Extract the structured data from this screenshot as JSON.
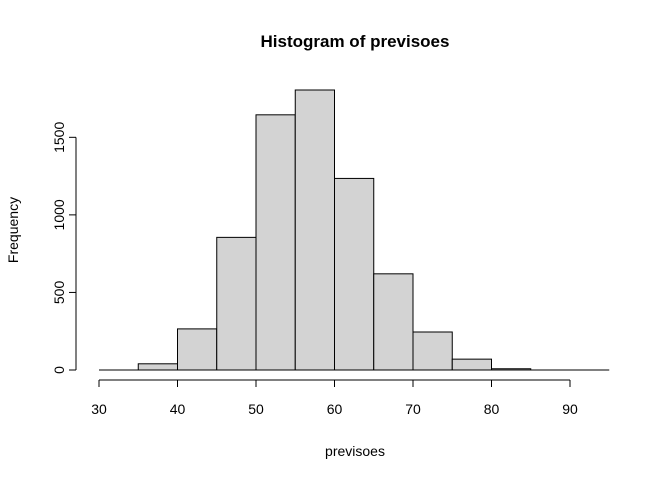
{
  "chart_data": {
    "type": "bar",
    "title": "Histogram of previsoes",
    "xlabel": "previsoes",
    "ylabel": "Frequency",
    "bins": [
      {
        "from": 30,
        "to": 35,
        "count": 0
      },
      {
        "from": 35,
        "to": 40,
        "count": 40
      },
      {
        "from": 40,
        "to": 45,
        "count": 265
      },
      {
        "from": 45,
        "to": 50,
        "count": 855
      },
      {
        "from": 50,
        "to": 55,
        "count": 1645
      },
      {
        "from": 55,
        "to": 60,
        "count": 1805
      },
      {
        "from": 60,
        "to": 65,
        "count": 1235
      },
      {
        "from": 65,
        "to": 70,
        "count": 620
      },
      {
        "from": 70,
        "to": 75,
        "count": 245
      },
      {
        "from": 75,
        "to": 80,
        "count": 70
      },
      {
        "from": 80,
        "to": 85,
        "count": 8
      },
      {
        "from": 85,
        "to": 90,
        "count": 0
      },
      {
        "from": 90,
        "to": 95,
        "count": 0
      }
    ],
    "x_ticks": [
      "30",
      "40",
      "50",
      "60",
      "70",
      "80",
      "90"
    ],
    "y_ticks": [
      "0",
      "500",
      "1000",
      "1500"
    ],
    "xlim": [
      30,
      95
    ],
    "ylim": [
      0,
      1805
    ],
    "grid": false,
    "colors": {
      "bar_fill": "#d3d3d3",
      "bar_stroke": "#000000"
    }
  }
}
